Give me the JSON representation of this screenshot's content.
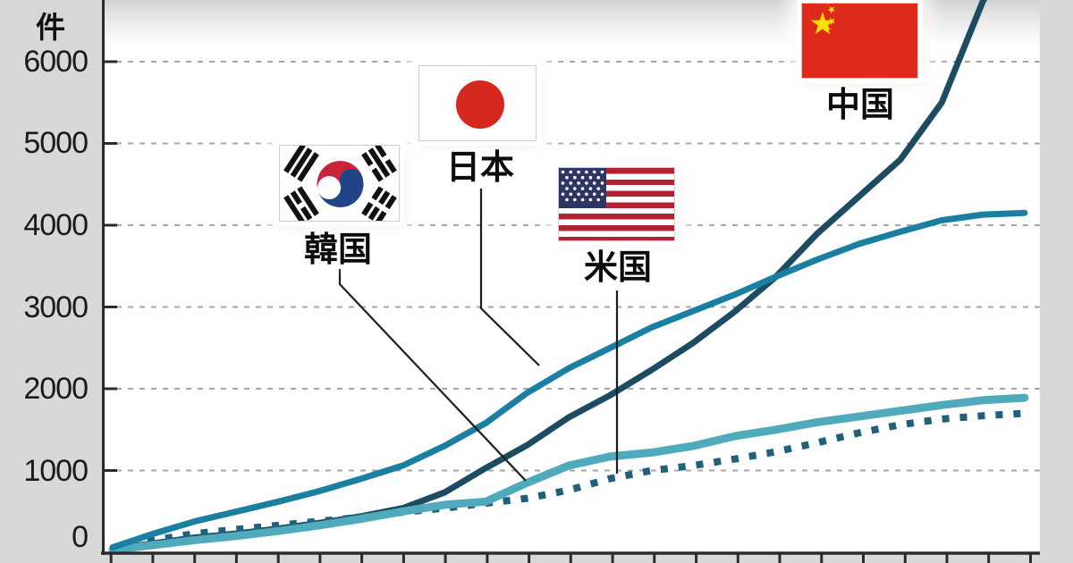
{
  "y_axis": {
    "unit_label": "件",
    "tick_labels": [
      "6000",
      "5000",
      "4000",
      "3000",
      "2000",
      "1000",
      "0"
    ]
  },
  "x_axis": {
    "note": "23 evenly spaced ticks; year labels are cropped out of the frame"
  },
  "countries": [
    {
      "id": "korea",
      "label": "韓国",
      "flag": "flag-of-south-korea"
    },
    {
      "id": "japan",
      "label": "日本",
      "flag": "flag-of-japan"
    },
    {
      "id": "usa",
      "label": "米国",
      "flag": "flag-of-united-states"
    },
    {
      "id": "china",
      "label": "中国",
      "flag": "flag-of-china"
    }
  ],
  "colors": {
    "japan_line": "#1b7fa2",
    "china_line": "#1d4b61",
    "korea_line": "#4fabbb",
    "usa_line": "#20607c",
    "axis": "#2b2b2b",
    "gridline": "#a6a6a6",
    "background": "#d8d8d8",
    "plot_background": "#ffffff",
    "callout_line": "#1c1c1c"
  },
  "chart_data": {
    "type": "line",
    "title": "",
    "ylabel": "件",
    "ylim": [
      0,
      6750
    ],
    "grid": true,
    "x_tick_count": 23,
    "x_labels_visible": false,
    "series": [
      {
        "id": "china",
        "name": "中国",
        "style": "solid-dark",
        "values": [
          40,
          110,
          180,
          230,
          290,
          360,
          440,
          540,
          730,
          1030,
          1310,
          1650,
          1920,
          2230,
          2560,
          2940,
          3370,
          3900,
          4350,
          4800,
          5500,
          6750,
          7400
        ]
      },
      {
        "id": "japan",
        "name": "日本",
        "style": "solid",
        "values": [
          60,
          230,
          380,
          500,
          620,
          750,
          900,
          1060,
          1300,
          1580,
          1950,
          2250,
          2500,
          2750,
          2950,
          3150,
          3370,
          3580,
          3770,
          3920,
          4060,
          4130,
          4150
        ]
      },
      {
        "id": "korea",
        "name": "韓国",
        "style": "solid-light",
        "values": [
          30,
          90,
          150,
          200,
          260,
          330,
          410,
          500,
          580,
          620,
          850,
          1060,
          1170,
          1220,
          1300,
          1420,
          1500,
          1590,
          1660,
          1730,
          1800,
          1860,
          1890
        ]
      },
      {
        "id": "usa",
        "name": "米国",
        "style": "dotted",
        "values": [
          50,
          150,
          230,
          280,
          330,
          380,
          430,
          490,
          540,
          600,
          660,
          760,
          900,
          1000,
          1060,
          1140,
          1230,
          1340,
          1460,
          1560,
          1630,
          1670,
          1700
        ]
      }
    ],
    "notes": "Values estimated from pixels; China line exits the top of the cropped frame near its 22nd point. Japan ends ≈4150, Korea ≈1890, USA ≈1700."
  }
}
